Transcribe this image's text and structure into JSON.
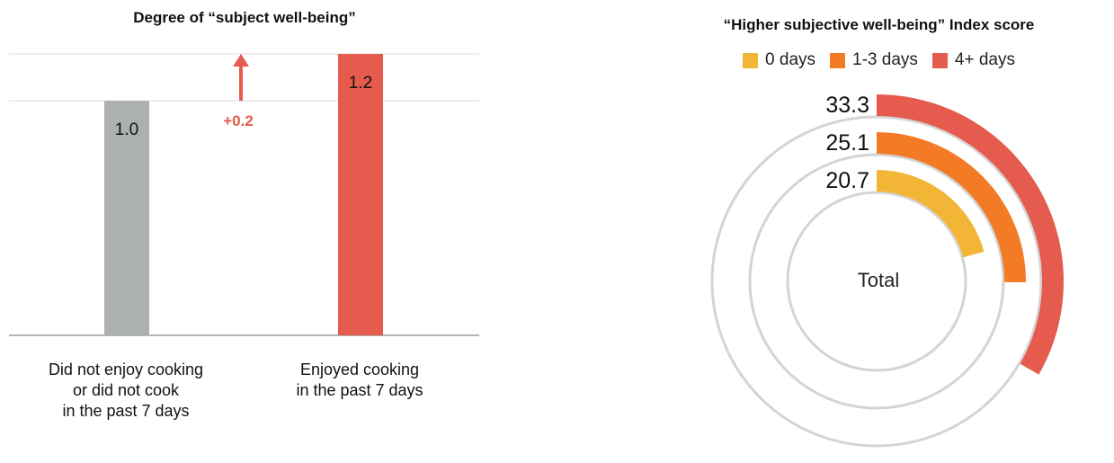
{
  "chart_data": [
    {
      "type": "bar",
      "title": "Degree of “subject well-being”",
      "categories": [
        "Did not enjoy cooking\nor did not cook\nin the past 7 days",
        "Enjoyed cooking\nin the past 7 days"
      ],
      "values": [
        1.0,
        1.2
      ],
      "value_labels": [
        "1.0",
        "1.2"
      ],
      "colors": [
        "#adb0b1",
        "#e55b4d"
      ],
      "ylim": [
        0,
        1.2
      ],
      "grid": true,
      "annotation": {
        "text": "+0.2",
        "color": "#e55b4d"
      }
    },
    {
      "type": "radial_bar",
      "title": "“Higher subjective well-being” Index score",
      "center_label": "Total",
      "series": [
        {
          "name": "0 days",
          "value": 20.7,
          "label": "20.7",
          "color": "#f2b536"
        },
        {
          "name": "1-3 days",
          "value": 25.1,
          "label": "25.1",
          "color": "#f37b25"
        },
        {
          "name": "4+ days",
          "value": 33.3,
          "label": "33.3",
          "color": "#e55b4d"
        }
      ],
      "max": 100,
      "track_color": "#d4d4d4",
      "legend_position": "top"
    }
  ]
}
